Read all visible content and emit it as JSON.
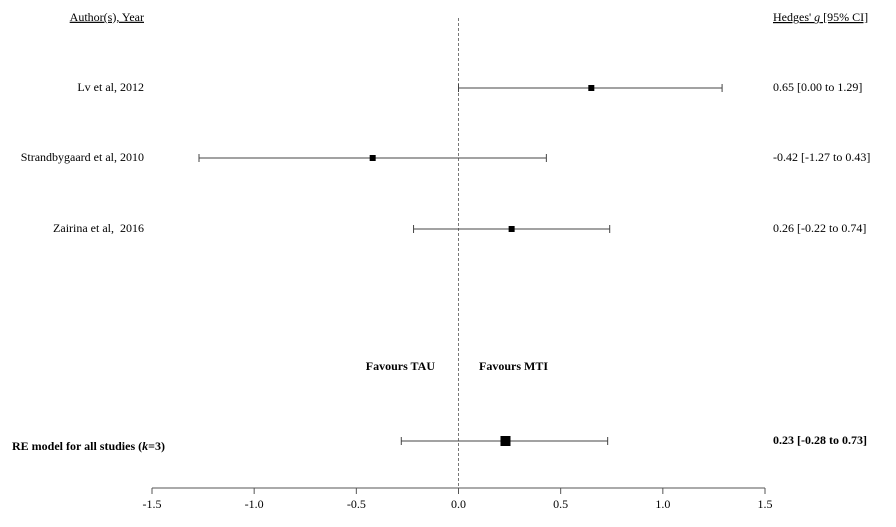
{
  "chart_data": {
    "type": "forest",
    "study_header": "Author(s), Year",
    "estimate_header": [
      "Hedges' ",
      "g",
      " [95% CI]"
    ],
    "studies": [
      {
        "name": "Lv et al, 2012",
        "estimate": 0.65,
        "lower": 0.0,
        "upper": 1.29,
        "value_label": "0.65 [0.00 to 1.29]"
      },
      {
        "name": "Strandbygaard et al, 2010",
        "estimate": -0.42,
        "lower": -1.27,
        "upper": 0.43,
        "value_label": "-0.42 [-1.27 to 0.43]"
      },
      {
        "name": "Zairina et al,  2016",
        "estimate": 0.26,
        "lower": -0.22,
        "upper": 0.74,
        "value_label": "0.26 [-0.22 to 0.74]"
      }
    ],
    "summary": {
      "name": [
        "RE model for all studies (",
        "k",
        "=3)"
      ],
      "estimate": 0.23,
      "lower": -0.28,
      "upper": 0.73,
      "value_label": "0.23 [-0.28 to 0.73]"
    },
    "annotations": [
      "Favours TAU",
      "Favours MTI"
    ],
    "xlim": [
      -1.5,
      1.5
    ],
    "xticks": [
      -1.5,
      {
        "value": -1.0,
        "label": "-1.0"
      },
      -0.5,
      {
        "value": 0.0,
        "label": "0.0"
      },
      0.5,
      {
        "value": 1.0,
        "label": "1.0"
      },
      1.5
    ],
    "reference_line": 0,
    "color": "#000000"
  }
}
